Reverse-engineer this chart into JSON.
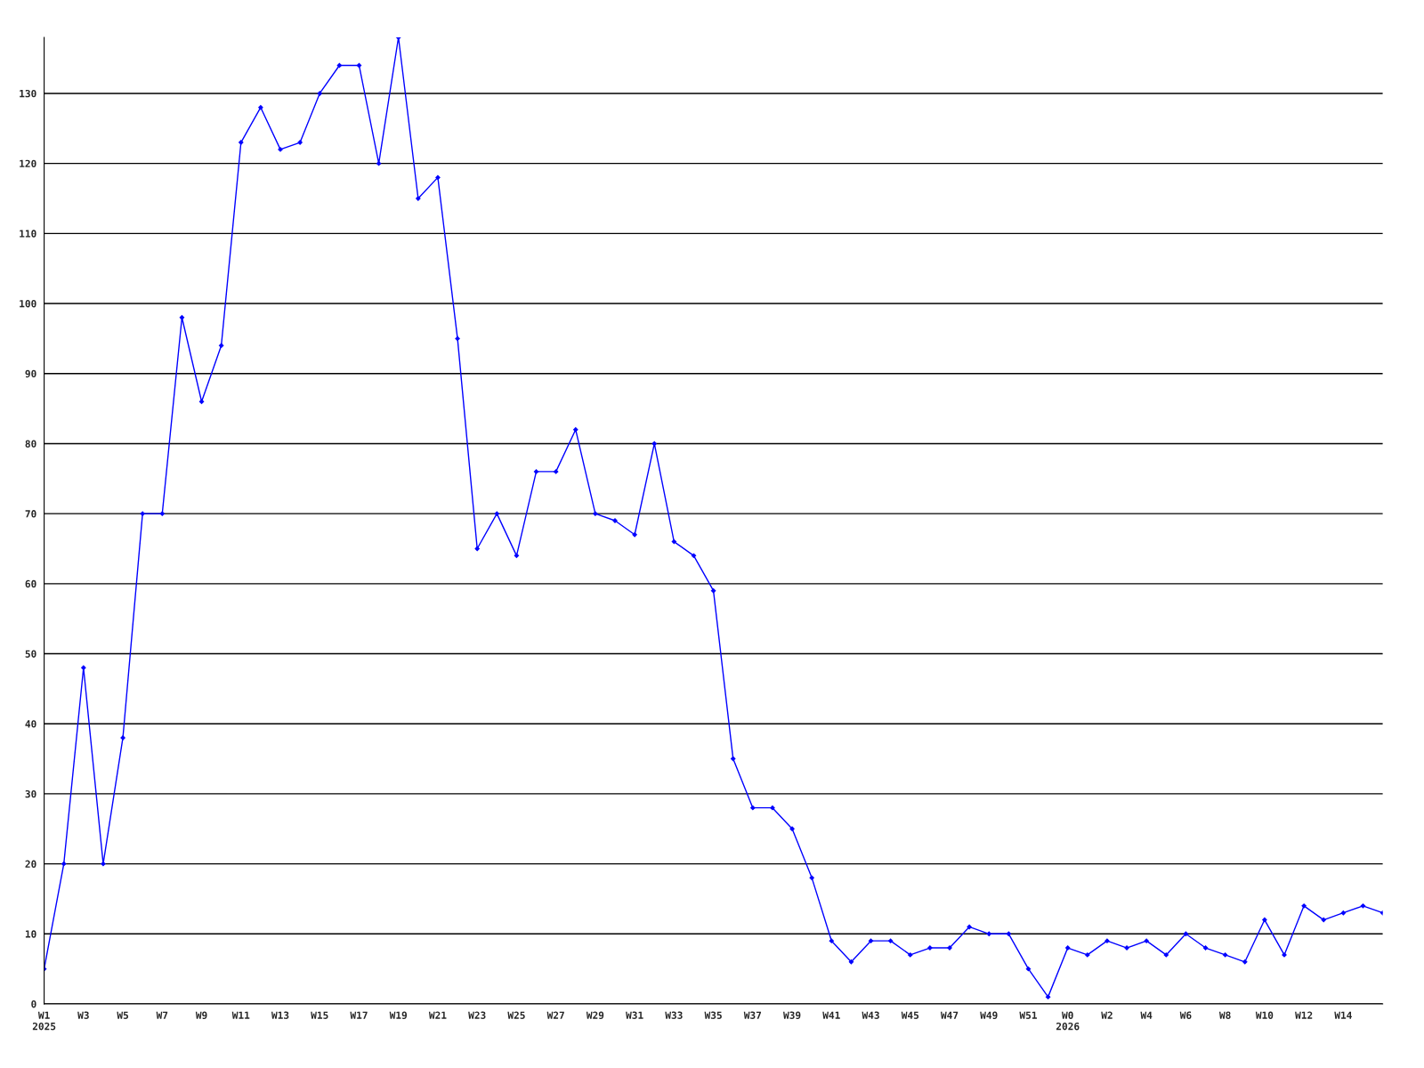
{
  "chart_data": {
    "type": "line",
    "categories": [
      "W1\n2025",
      null,
      "W3",
      null,
      "W5",
      null,
      "W7",
      null,
      "W9",
      null,
      "W11",
      null,
      "W13",
      null,
      "W15",
      null,
      "W17",
      null,
      "W19",
      null,
      "W21",
      null,
      "W23",
      null,
      "W25",
      null,
      "W27",
      null,
      "W29",
      null,
      "W31",
      null,
      "W33",
      null,
      "W35",
      null,
      "W37",
      null,
      "W39",
      null,
      "W41",
      null,
      "W43",
      null,
      "W45",
      null,
      "W47",
      null,
      "W49",
      null,
      "W51",
      null,
      "W0\n2026",
      null,
      "W2",
      null,
      "W4",
      null,
      "W6",
      null,
      "W8",
      null,
      "W10",
      null,
      "W12",
      null,
      "W14",
      null,
      null
    ],
    "series": [
      {
        "color": "#0000ff",
        "values": [
          5,
          20,
          48,
          20,
          38,
          70,
          70,
          98,
          86,
          94,
          123,
          128,
          122,
          123,
          130,
          134,
          134,
          120,
          138,
          115,
          118,
          95,
          65,
          70,
          64,
          76,
          76,
          82,
          70,
          69,
          67,
          80,
          66,
          64,
          59,
          35,
          28,
          28,
          25,
          18,
          9,
          6,
          9,
          9,
          7,
          8,
          8,
          11,
          10,
          10,
          5,
          1,
          8,
          7,
          9,
          8,
          9,
          7,
          10,
          8,
          7,
          6,
          12,
          7,
          14,
          12,
          13,
          14,
          13
        ]
      }
    ],
    "ylim": [
      0,
      138
    ],
    "yticks": [
      0,
      10,
      20,
      30,
      40,
      50,
      60,
      70,
      80,
      90,
      100,
      110,
      120,
      130
    ],
    "grid": "y",
    "marker": "diamond",
    "line_style": "solid",
    "legend": false
  }
}
